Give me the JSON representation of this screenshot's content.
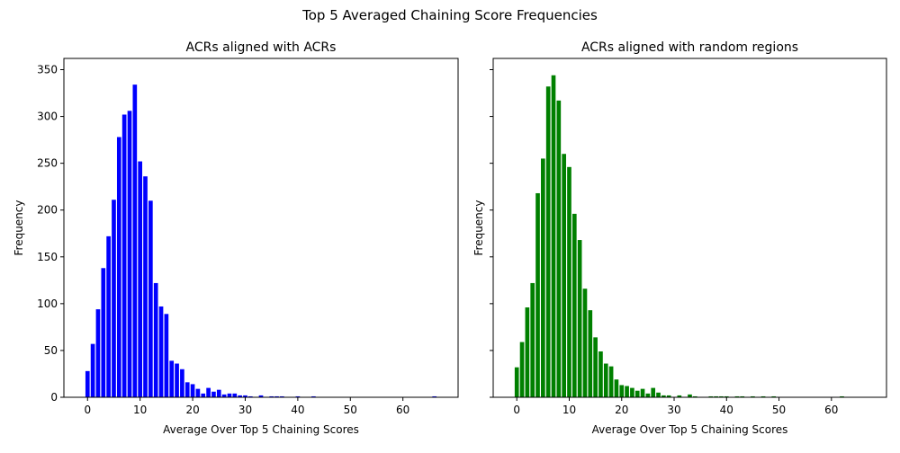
{
  "figure": {
    "suptitle": "Top 5 Averaged Chaining Score Frequencies"
  },
  "chart_data": [
    {
      "type": "bar",
      "title": "ACRs aligned with ACRs",
      "xlabel": "Average Over Top 5 Chaining Scores",
      "ylabel": "Frequency",
      "color": "#0000ff",
      "xlim": [
        -4.5,
        70.5
      ],
      "ylim": [
        0,
        362
      ],
      "xticks": [
        0,
        10,
        20,
        30,
        40,
        50,
        60
      ],
      "yticks": [
        0,
        50,
        100,
        150,
        200,
        250,
        300,
        350
      ],
      "grid": false,
      "x": [
        0,
        1,
        2,
        3,
        4,
        5,
        6,
        7,
        8,
        9,
        10,
        11,
        12,
        13,
        14,
        15,
        16,
        17,
        18,
        19,
        20,
        21,
        22,
        23,
        24,
        25,
        26,
        27,
        28,
        29,
        30,
        31,
        32,
        33,
        34,
        35,
        36,
        37,
        38,
        39,
        40,
        41,
        42,
        43,
        44,
        45,
        46,
        47,
        48,
        49,
        50,
        51,
        52,
        53,
        54,
        55,
        56,
        57,
        58,
        59,
        60,
        61,
        62,
        63,
        64,
        65,
        66
      ],
      "values": [
        28,
        57,
        94,
        138,
        172,
        211,
        278,
        302,
        306,
        334,
        252,
        236,
        210,
        122,
        97,
        89,
        39,
        36,
        30,
        16,
        14,
        9,
        4,
        10,
        6,
        8,
        3,
        4,
        4,
        2,
        2,
        1,
        0,
        2,
        0,
        1,
        1,
        1,
        0,
        0,
        1,
        0,
        0,
        1,
        0,
        0,
        0,
        0,
        0,
        0,
        0,
        0,
        0,
        0,
        0,
        0,
        0,
        0,
        0,
        0,
        0,
        0,
        0,
        0,
        0,
        0,
        1
      ]
    },
    {
      "type": "bar",
      "title": "ACRs aligned with random regions",
      "xlabel": "Average Over Top 5 Chaining Scores",
      "ylabel": "Frequency",
      "color": "#008000",
      "xlim": [
        -4.5,
        70.5
      ],
      "ylim": [
        0,
        362
      ],
      "xticks": [
        0,
        10,
        20,
        30,
        40,
        50,
        60
      ],
      "yticks": [
        0,
        50,
        100,
        150,
        200,
        250,
        300,
        350
      ],
      "grid": false,
      "shared_y": true,
      "x": [
        0,
        1,
        2,
        3,
        4,
        5,
        6,
        7,
        8,
        9,
        10,
        11,
        12,
        13,
        14,
        15,
        16,
        17,
        18,
        19,
        20,
        21,
        22,
        23,
        24,
        25,
        26,
        27,
        28,
        29,
        30,
        31,
        32,
        33,
        34,
        35,
        36,
        37,
        38,
        39,
        40,
        41,
        42,
        43,
        44,
        45,
        46,
        47,
        48,
        49,
        50,
        51,
        52,
        53,
        54,
        55,
        56,
        57,
        58,
        59,
        60,
        61,
        62,
        63,
        64,
        65,
        66
      ],
      "values": [
        32,
        59,
        96,
        122,
        218,
        255,
        332,
        344,
        317,
        260,
        246,
        196,
        168,
        116,
        93,
        64,
        49,
        36,
        33,
        19,
        13,
        12,
        10,
        7,
        9,
        4,
        10,
        5,
        2,
        2,
        0,
        2,
        0,
        3,
        1,
        0,
        0,
        1,
        1,
        1,
        1,
        0,
        1,
        1,
        0,
        1,
        0,
        1,
        0,
        1,
        0,
        0,
        0,
        0,
        0,
        0,
        0,
        0,
        0,
        0,
        0,
        0,
        1,
        0,
        0,
        0,
        0
      ]
    }
  ]
}
